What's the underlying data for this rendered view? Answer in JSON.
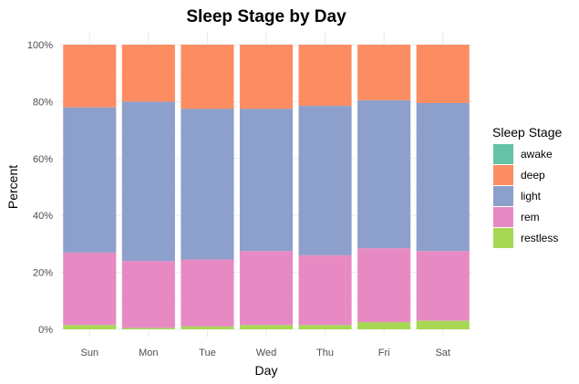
{
  "chart_data": {
    "type": "bar",
    "stacked": true,
    "title": "Sleep Stage by Day",
    "xlabel": "Day",
    "ylabel": "Percent",
    "ylim": [
      0,
      100
    ],
    "y_ticks": [
      0,
      20,
      40,
      60,
      80,
      100
    ],
    "y_tick_labels": [
      "0%",
      "20%",
      "40%",
      "60%",
      "80%",
      "100%"
    ],
    "categories": [
      "Sun",
      "Mon",
      "Tue",
      "Wed",
      "Thu",
      "Fri",
      "Sat"
    ],
    "legend_title": "Sleep Stage",
    "legend_position": "right",
    "series": [
      {
        "name": "awake",
        "color": "#66c2a5",
        "values": [
          0,
          0,
          0,
          0,
          0,
          0,
          0
        ]
      },
      {
        "name": "deep",
        "color": "#fc8d62",
        "values": [
          22,
          20,
          22.5,
          22.5,
          21.5,
          19.5,
          20.5
        ]
      },
      {
        "name": "light",
        "color": "#8da0cb",
        "values": [
          51,
          56,
          53,
          50,
          52.5,
          52,
          52
        ]
      },
      {
        "name": "rem",
        "color": "#e78ac3",
        "values": [
          25.5,
          23.5,
          23.5,
          26,
          24.5,
          26,
          24.5
        ]
      },
      {
        "name": "restless",
        "color": "#a6d854",
        "values": [
          1.5,
          0.5,
          1,
          1.5,
          1.5,
          2.5,
          3
        ]
      }
    ],
    "stack_order_bottom_to_top": [
      "restless",
      "rem",
      "light",
      "deep",
      "awake"
    ]
  }
}
